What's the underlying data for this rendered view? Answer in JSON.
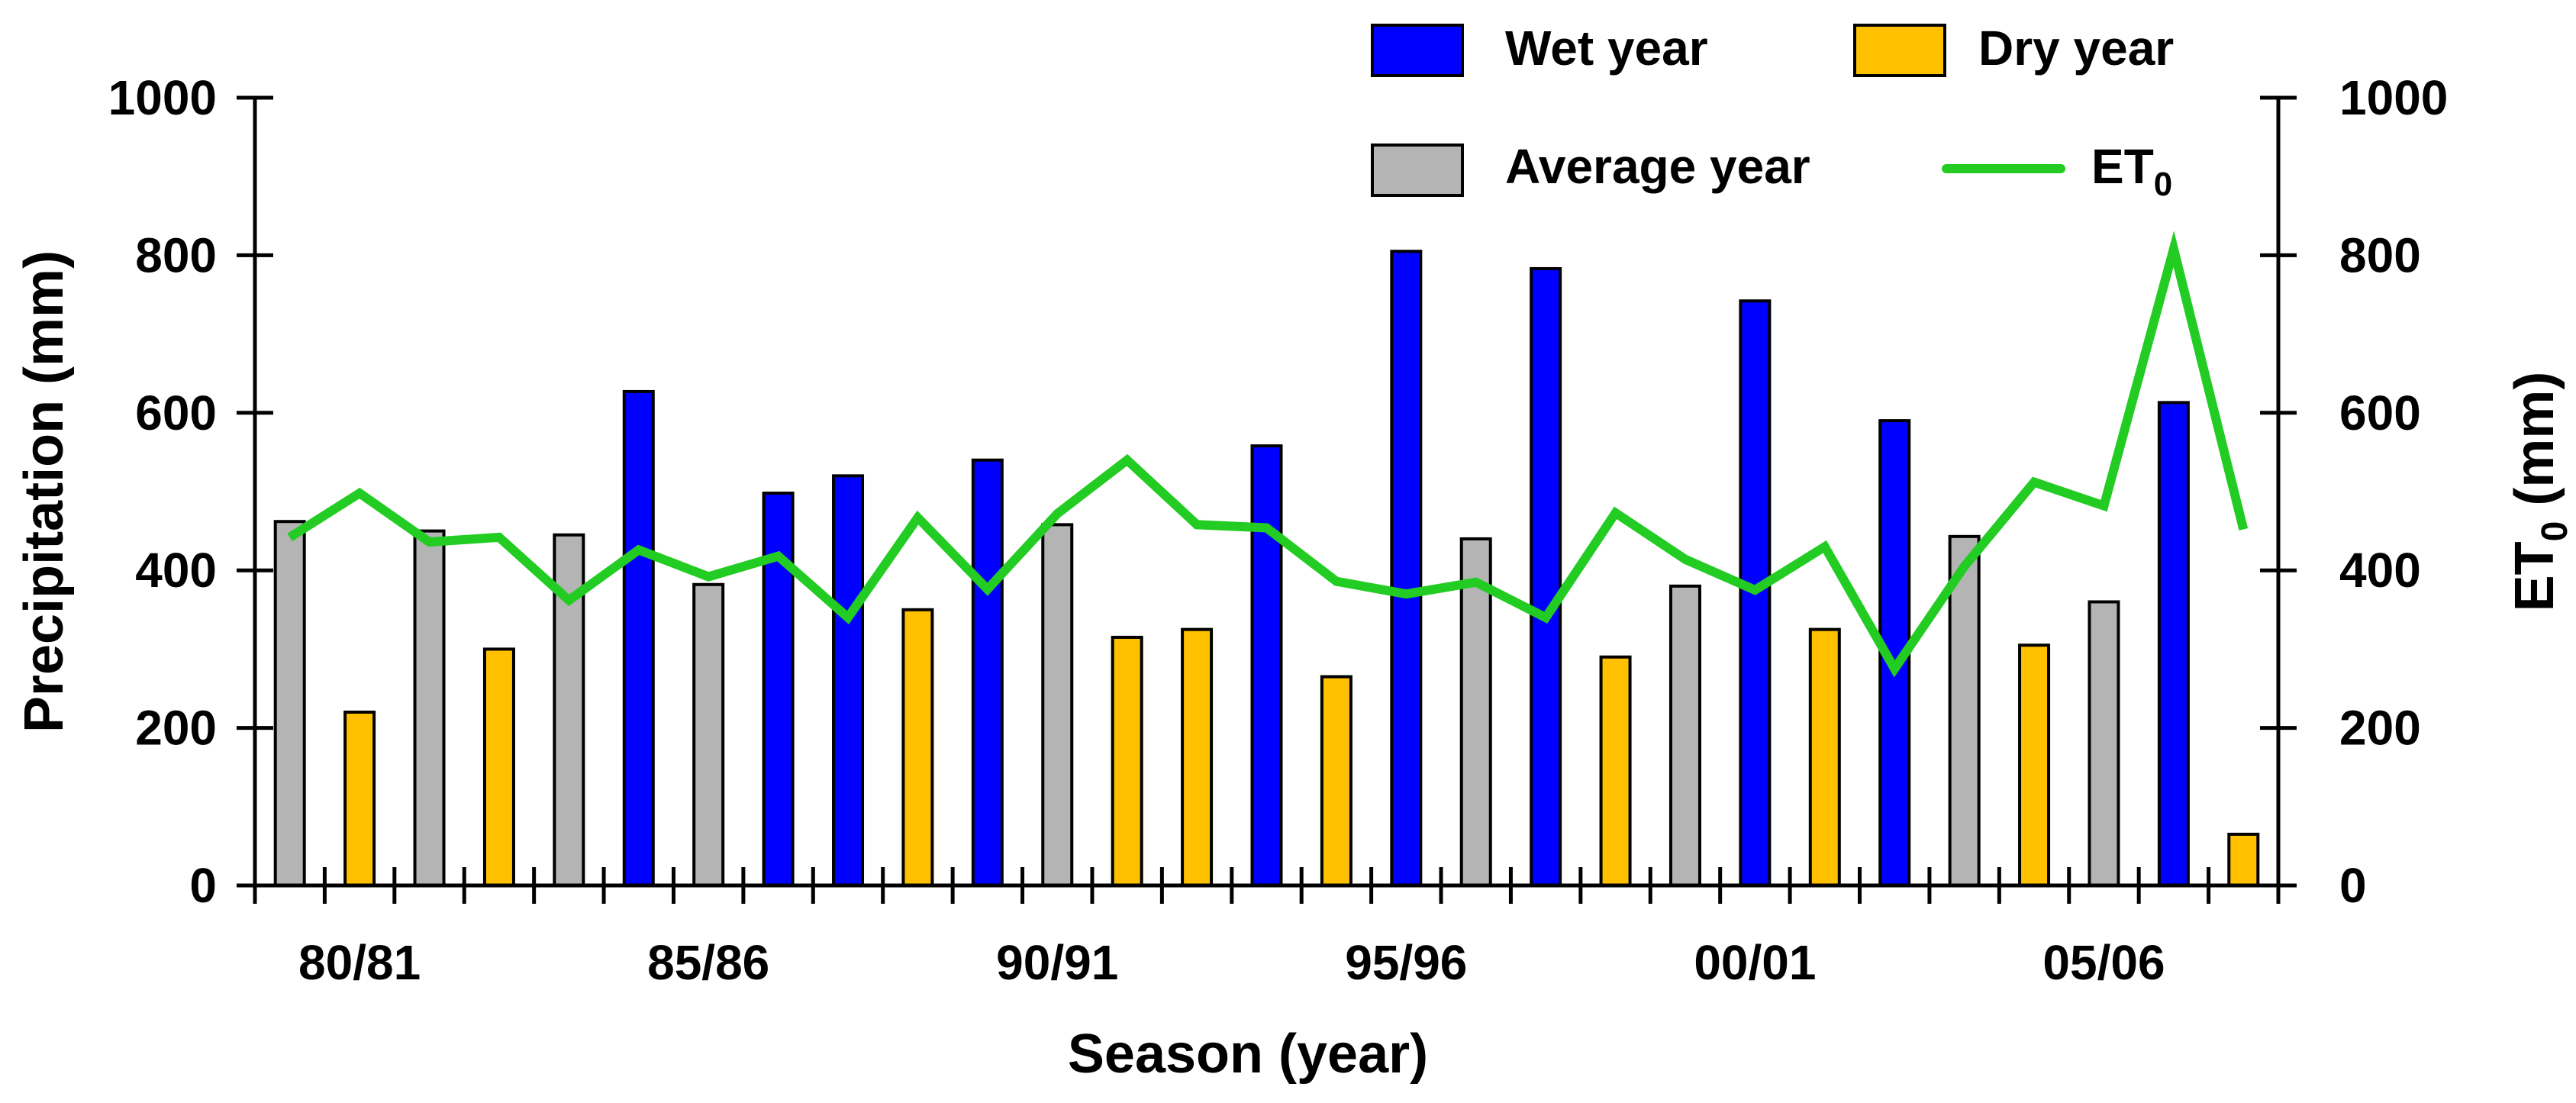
{
  "chart_data": {
    "type": "bar",
    "title": "",
    "xlabel": "Season (year)",
    "ylabel": "Precipitation (mm)",
    "y2label": {
      "base": "ET",
      "subscript": "0",
      "suffix": " (mm)"
    },
    "ylim": [
      0,
      1000
    ],
    "y2lim": [
      0,
      1000
    ],
    "yticks": [
      "0",
      "200",
      "400",
      "600",
      "800",
      "1000"
    ],
    "y2ticks": [
      "0",
      "200",
      "400",
      "600",
      "800",
      "1000"
    ],
    "xtick_labels": [
      {
        "label": "80/81",
        "index": 1
      },
      {
        "label": "85/86",
        "index": 6
      },
      {
        "label": "90/91",
        "index": 11
      },
      {
        "label": "95/96",
        "index": 16
      },
      {
        "label": "00/01",
        "index": 21
      },
      {
        "label": "05/06",
        "index": 26
      }
    ],
    "year_types": {
      "wet": {
        "name": "Wet year",
        "color": "#0000ff"
      },
      "dry": {
        "name": "Dry year",
        "color": "#ffc000"
      },
      "average": {
        "name": "Average year",
        "color": "#b4b4b4"
      }
    },
    "series": [
      {
        "name": "Precipitation",
        "axis": "left",
        "values": [
          462,
          220,
          450,
          300,
          445,
          627,
          382,
          498,
          520,
          350,
          540,
          458,
          315,
          325,
          558,
          265,
          805,
          440,
          783,
          290,
          380,
          742,
          325,
          590,
          443,
          305,
          360,
          613,
          65
        ],
        "year_type": [
          "average",
          "dry",
          "average",
          "dry",
          "average",
          "wet",
          "average",
          "wet",
          "wet",
          "dry",
          "wet",
          "average",
          "dry",
          "dry",
          "wet",
          "dry",
          "wet",
          "average",
          "wet",
          "dry",
          "average",
          "wet",
          "dry",
          "wet",
          "average",
          "dry",
          "average",
          "wet",
          "dry"
        ]
      },
      {
        "name": "ET0",
        "axis": "right",
        "type": "line",
        "color": "#22cc22",
        "values": [
          442,
          498,
          436,
          442,
          362,
          426,
          392,
          418,
          340,
          467,
          376,
          472,
          540,
          458,
          454,
          386,
          370,
          385,
          340,
          473,
          414,
          375,
          430,
          275,
          405,
          512,
          482,
          808,
          452
        ]
      }
    ],
    "legend": {
      "placement": "top-right",
      "items": [
        {
          "label": "Wet year",
          "kind": "box",
          "color": "#0000ff"
        },
        {
          "label": "Dry year",
          "kind": "box",
          "color": "#ffc000"
        },
        {
          "label": "Average year",
          "kind": "box",
          "color": "#b4b4b4"
        },
        {
          "label": "ET",
          "subscript": "0",
          "kind": "line",
          "color": "#22cc22"
        }
      ]
    }
  }
}
